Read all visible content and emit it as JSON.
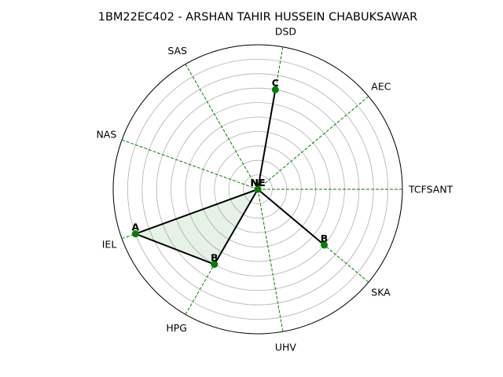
{
  "chart_data": {
    "type": "radar",
    "title": "1BM22EC402 - ARSHAN TAHIR HUSSEIN CHABUKSAWAR",
    "categories": [
      "TCFSANT",
      "AEC",
      "DSD",
      "SAS",
      "NAS",
      "IEL",
      "HPG",
      "UHV",
      "SKA"
    ],
    "values": [
      0,
      0,
      7,
      0,
      0,
      9,
      6,
      0,
      6
    ],
    "point_labels": [
      "NE",
      "NE",
      "C",
      "NE",
      "NE",
      "A",
      "B",
      "NE",
      "B"
    ],
    "rlim": [
      0,
      10
    ],
    "grid": true,
    "colors": {
      "line": "#000000",
      "marker": "#008000",
      "spokes": "#008000",
      "fill": "#008000",
      "grid": "#b0b0b0"
    }
  }
}
